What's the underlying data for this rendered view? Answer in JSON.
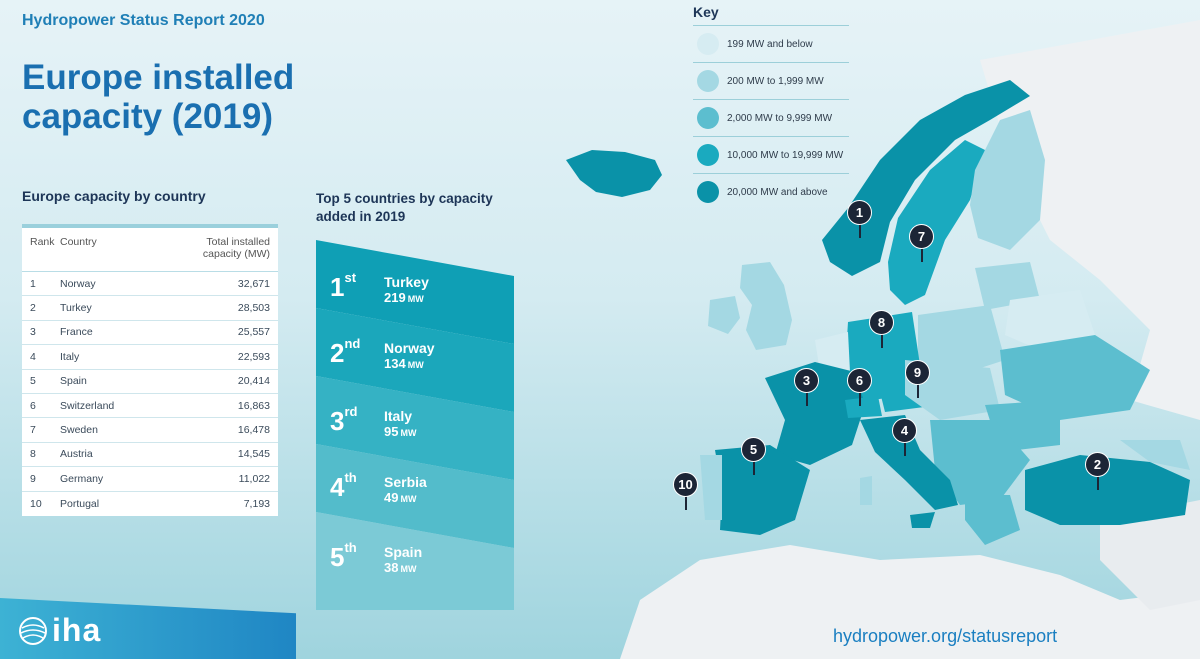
{
  "header": {
    "report_title": "Hydropower Status Report 2020",
    "main_title": "Europe installed capacity (2019)"
  },
  "capacity_table": {
    "heading": "Europe capacity by country",
    "columns": [
      "Rank",
      "Country",
      "Total installed capacity (MW)"
    ],
    "rows": [
      {
        "rank": "1",
        "country": "Norway",
        "capacity": "32,671"
      },
      {
        "rank": "2",
        "country": "Turkey",
        "capacity": "28,503"
      },
      {
        "rank": "3",
        "country": "France",
        "capacity": "25,557"
      },
      {
        "rank": "4",
        "country": "Italy",
        "capacity": "22,593"
      },
      {
        "rank": "5",
        "country": "Spain",
        "capacity": "20,414"
      },
      {
        "rank": "6",
        "country": "Switzerland",
        "capacity": "16,863"
      },
      {
        "rank": "7",
        "country": "Sweden",
        "capacity": "16,478"
      },
      {
        "rank": "8",
        "country": "Austria",
        "capacity": "14,545"
      },
      {
        "rank": "9",
        "country": "Germany",
        "capacity": "11,022"
      },
      {
        "rank": "10",
        "country": "Portugal",
        "capacity": "7,193"
      }
    ]
  },
  "top5": {
    "heading": "Top 5 countries by capacity added in 2019",
    "entries": [
      {
        "rank": "1",
        "suffix": "st",
        "country": "Turkey",
        "value": "219",
        "unit": "MW",
        "color": "#0f9fb5"
      },
      {
        "rank": "2",
        "suffix": "nd",
        "country": "Norway",
        "value": "134",
        "unit": "MW",
        "color": "#1ba7bb"
      },
      {
        "rank": "3",
        "suffix": "rd",
        "country": "Italy",
        "value": "95",
        "unit": "MW",
        "color": "#35b2c4"
      },
      {
        "rank": "4",
        "suffix": "th",
        "country": "Serbia",
        "value": "49",
        "unit": "MW",
        "color": "#53bccb"
      },
      {
        "rank": "5",
        "suffix": "th",
        "country": "Spain",
        "value": "38",
        "unit": "MW",
        "color": "#7ccad6"
      }
    ]
  },
  "key": {
    "title": "Key",
    "items": [
      {
        "label": "199 MW and below",
        "color": "#d6ecf2"
      },
      {
        "label": "200 MW to 1,999 MW",
        "color": "#a4d8e3"
      },
      {
        "label": "2,000 MW to 9,999 MW",
        "color": "#5cbecf"
      },
      {
        "label": "10,000 MW to 19,999 MW",
        "color": "#1aaabf"
      },
      {
        "label": "20,000 MW and above",
        "color": "#0a92a8"
      }
    ]
  },
  "map_markers": [
    {
      "label": "1",
      "country": "Norway"
    },
    {
      "label": "2",
      "country": "Turkey"
    },
    {
      "label": "3",
      "country": "France"
    },
    {
      "label": "4",
      "country": "Italy"
    },
    {
      "label": "5",
      "country": "Spain"
    },
    {
      "label": "6",
      "country": "Switzerland"
    },
    {
      "label": "7",
      "country": "Sweden"
    },
    {
      "label": "8",
      "country": "Austria"
    },
    {
      "label": "9",
      "country": "Germany"
    },
    {
      "label": "10",
      "country": "Portugal"
    }
  ],
  "footer": {
    "logo_text": "iha",
    "url": "hydropower.org/statusreport"
  }
}
